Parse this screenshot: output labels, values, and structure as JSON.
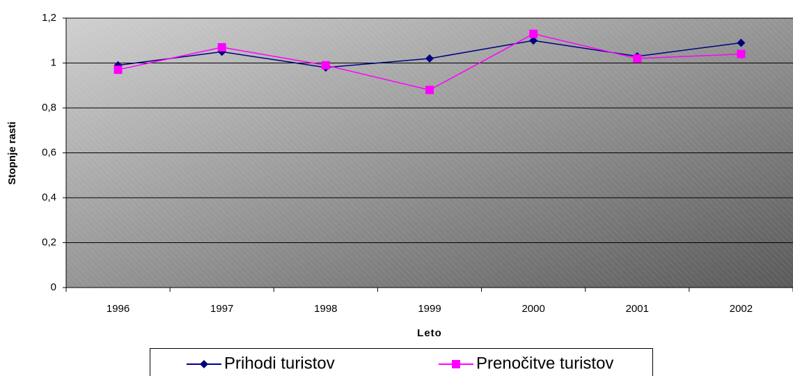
{
  "chart_data": {
    "type": "line",
    "x_label": "Leto",
    "y_label": "Stopnje rasti",
    "categories": [
      "1996",
      "1997",
      "1998",
      "1999",
      "2000",
      "2001",
      "2002"
    ],
    "series": [
      {
        "name": "Prihodi turistov",
        "color": "#000080",
        "marker": "diamond",
        "values": [
          0.99,
          1.05,
          0.98,
          1.02,
          1.1,
          1.03,
          1.09
        ]
      },
      {
        "name": "Prenočitve turistov",
        "color": "#ff00ff",
        "marker": "square",
        "values": [
          0.97,
          1.07,
          0.99,
          0.88,
          1.13,
          1.02,
          1.04
        ]
      }
    ],
    "ylim": [
      0,
      1.2
    ],
    "yticks": [
      0,
      {
        "value": 0.2,
        "label": "0,2"
      },
      {
        "value": 0.4,
        "label": "0,4"
      },
      {
        "value": 0.6,
        "label": "0,6"
      },
      {
        "value": 0.8,
        "label": "0,8"
      },
      1,
      {
        "value": 1.2,
        "label": "1,2"
      }
    ],
    "grid": true,
    "legend": "bottom"
  }
}
